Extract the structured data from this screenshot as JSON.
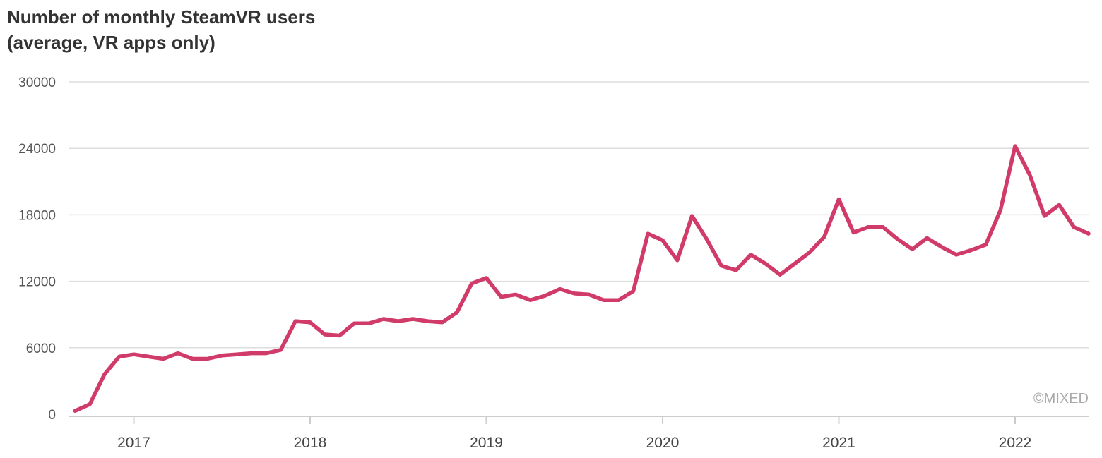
{
  "chart_data": {
    "type": "line",
    "title_line1": "Number of monthly SteamVR users",
    "title_line2": "(average, VR apps only)",
    "xlabel": "",
    "ylabel": "",
    "ylim": [
      0,
      30000
    ],
    "yticks": [
      "0",
      "6000",
      "12000",
      "18000",
      "24000",
      "30000"
    ],
    "xticks": [
      "2017",
      "2018",
      "2019",
      "2020",
      "2021",
      "2022"
    ],
    "xlim": [
      "2016-09",
      "2022-06"
    ],
    "grid": true,
    "line_color": "#d03b6a",
    "watermark": "©MIXED",
    "series": [
      {
        "x": [
          "2016-09",
          "2016-10",
          "2016-11",
          "2016-12",
          "2017-01",
          "2017-02",
          "2017-03",
          "2017-04",
          "2017-05",
          "2017-06",
          "2017-07",
          "2017-08",
          "2017-09",
          "2017-10",
          "2017-11",
          "2017-12",
          "2018-01",
          "2018-02",
          "2018-03",
          "2018-04",
          "2018-05",
          "2018-06",
          "2018-07",
          "2018-08",
          "2018-09",
          "2018-10",
          "2018-11",
          "2018-12",
          "2019-01",
          "2019-02",
          "2019-03",
          "2019-04",
          "2019-05",
          "2019-06",
          "2019-07",
          "2019-08",
          "2019-09",
          "2019-10",
          "2019-11",
          "2019-12",
          "2020-01",
          "2020-02",
          "2020-03",
          "2020-04",
          "2020-05",
          "2020-06",
          "2020-07",
          "2020-08",
          "2020-09",
          "2020-10",
          "2020-11",
          "2020-12",
          "2021-01",
          "2021-02",
          "2021-03",
          "2021-04",
          "2021-05",
          "2021-06",
          "2021-07",
          "2021-08",
          "2021-09",
          "2021-10",
          "2021-11",
          "2021-12",
          "2022-01",
          "2022-02",
          "2022-03",
          "2022-04",
          "2022-05",
          "2022-06"
        ],
        "values": [
          300,
          900,
          3600,
          5200,
          5400,
          5200,
          5000,
          5500,
          5000,
          5000,
          5300,
          5400,
          5500,
          5500,
          5800,
          8400,
          8300,
          7200,
          7100,
          8200,
          8200,
          8600,
          8400,
          8600,
          8400,
          8300,
          9200,
          11800,
          12300,
          10600,
          10800,
          10300,
          10700,
          11300,
          10900,
          10800,
          10300,
          10300,
          11100,
          16300,
          15700,
          13900,
          17900,
          15800,
          13400,
          13000,
          14400,
          13600,
          12600,
          13600,
          14600,
          16000,
          19400,
          16400,
          16900,
          16900,
          15800,
          14900,
          15900,
          15100,
          14400,
          14800,
          15300,
          18400,
          24200,
          21600,
          17900,
          18900,
          16900,
          16300
        ]
      }
    ]
  }
}
